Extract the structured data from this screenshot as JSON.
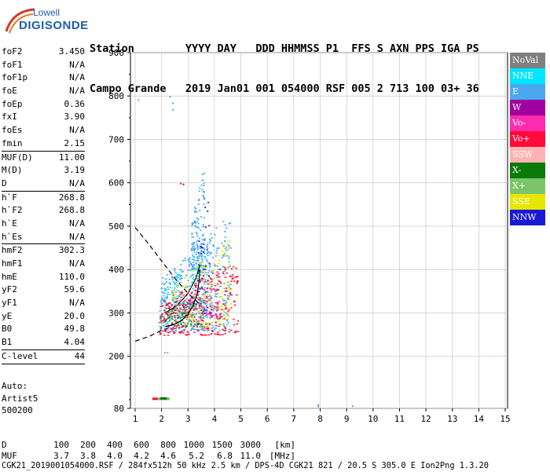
{
  "logo": {
    "line1": "Lowell",
    "line2": "DIGISONDE"
  },
  "header": {
    "line1": "Station        YYYY DAY   DDD HHMMSS P1  FFS S AXN PPS IGA PS",
    "line2": "Campo Grande   2019 Jan01 001 054000 RSF 005 2 713 100 03+ 36"
  },
  "params": [
    {
      "group": [
        {
          "k": "foF2",
          "v": "3.450"
        },
        {
          "k": "foF1",
          "v": "N/A"
        },
        {
          "k": "foF1p",
          "v": "N/A"
        },
        {
          "k": "foE",
          "v": "N/A"
        },
        {
          "k": "foEp",
          "v": "0.36"
        },
        {
          "k": "fxI",
          "v": "3.90"
        },
        {
          "k": "foEs",
          "v": "N/A"
        },
        {
          "k": "fmin",
          "v": "2.15"
        }
      ]
    },
    {
      "group": [
        {
          "k": "MUF(D)",
          "v": "11.00"
        },
        {
          "k": "M(D)",
          "v": "3.19"
        },
        {
          "k": "D",
          "v": "N/A"
        }
      ]
    },
    {
      "group": [
        {
          "k": "h`F",
          "v": "268.8"
        },
        {
          "k": "h`F2",
          "v": "268.8"
        },
        {
          "k": "h`E",
          "v": "N/A"
        },
        {
          "k": "h`Es",
          "v": "N/A"
        }
      ]
    },
    {
      "group": [
        {
          "k": "hmF2",
          "v": "302.3"
        },
        {
          "k": "hmF1",
          "v": "N/A"
        },
        {
          "k": "hmE",
          "v": "110.0"
        },
        {
          "k": "yF2",
          "v": "59.6"
        },
        {
          "k": "yF1",
          "v": "N/A"
        },
        {
          "k": "yE",
          "v": "20.0"
        },
        {
          "k": "B0",
          "v": "49.8"
        },
        {
          "k": "B1",
          "v": "4.04"
        }
      ]
    },
    {
      "group": [
        {
          "k": "C-level",
          "v": "44"
        }
      ]
    }
  ],
  "auto": [
    "Auto:",
    "Artist5",
    "500200"
  ],
  "legend": [
    {
      "label": "NoVal",
      "color": "#7f7f7f"
    },
    {
      "label": "NNE",
      "color": "#00e5ff"
    },
    {
      "label": "E",
      "color": "#4aa8f0"
    },
    {
      "label": "W",
      "color": "#a0009e"
    },
    {
      "label": "Vo-",
      "color": "#ff2bb0"
    },
    {
      "label": "Vo+",
      "color": "#ff0a3a"
    },
    {
      "label": "SSW",
      "color": "#ffb3b3"
    },
    {
      "label": "X-",
      "color": "#0a7a0a"
    },
    {
      "label": "X+",
      "color": "#7cc46a"
    },
    {
      "label": "SSE",
      "color": "#e6e600"
    },
    {
      "label": "NNW",
      "color": "#1a1ad4"
    }
  ],
  "footer": {
    "d_label": "D",
    "d_values": [
      "100",
      "200",
      "400",
      "600",
      "800",
      "1000",
      "1500",
      "3000",
      "[km]"
    ],
    "muf_label": "MUF",
    "muf_values": [
      "3.7",
      "3.8",
      "4.0",
      "4.2",
      "4.6",
      "5.2",
      "6.8",
      "11.0",
      "[MHz]"
    ],
    "info": "CGK21_2019001054000.RSF / 284fx512h 50 kHz 2.5 km / DPS-4D CGK21 821 / 20.5 S 305.0 E Ion2Png 1.3.20"
  },
  "chart_data": {
    "type": "scatter",
    "title": "",
    "xlabel": "",
    "ylabel": "",
    "xlim": [
      1,
      15
    ],
    "ylim": [
      80,
      900
    ],
    "x_ticks": [
      1,
      2,
      3,
      4,
      5,
      6,
      7,
      8,
      9,
      10,
      11,
      12,
      13,
      14,
      15
    ],
    "y_ticks": [
      80,
      200,
      300,
      400,
      500,
      600,
      700,
      800,
      900
    ],
    "grid": true,
    "legend_position": "right",
    "trace_clusters": [
      {
        "name": "E",
        "color": "#4aa8f0",
        "x_range": [
          1.9,
          4.6
        ],
        "y_range": [
          260,
          520
        ],
        "count": 520
      },
      {
        "name": "E",
        "color": "#4aa8f0",
        "x_range": [
          3.1,
          3.6
        ],
        "y_range": [
          400,
          640
        ],
        "count": 140
      },
      {
        "name": "NNE",
        "color": "#00e5ff",
        "x_range": [
          1.9,
          3.7
        ],
        "y_range": [
          270,
          470
        ],
        "count": 120
      },
      {
        "name": "Vo+",
        "color": "#ff0a3a",
        "x_range": [
          1.9,
          4.9
        ],
        "y_range": [
          250,
          420
        ],
        "count": 320
      },
      {
        "name": "Vo-",
        "color": "#ff2bb0",
        "x_range": [
          2.6,
          4.2
        ],
        "y_range": [
          290,
          390
        ],
        "count": 50
      },
      {
        "name": "SSE",
        "color": "#e6e600",
        "x_range": [
          2.3,
          4.6
        ],
        "y_range": [
          270,
          470
        ],
        "count": 160
      },
      {
        "name": "X+",
        "color": "#7cc46a",
        "x_range": [
          2.0,
          3.6
        ],
        "y_range": [
          265,
          350
        ],
        "count": 60
      },
      {
        "name": "X-",
        "color": "#0a7a0a",
        "x_range": [
          2.0,
          3.4
        ],
        "y_range": [
          270,
          340
        ],
        "count": 40
      },
      {
        "name": "W",
        "color": "#a0009e",
        "x_range": [
          2.4,
          3.9
        ],
        "y_range": [
          300,
          380
        ],
        "count": 30
      },
      {
        "name": "NNW",
        "color": "#1a1ad4",
        "x_range": [
          3.3,
          3.8
        ],
        "y_range": [
          300,
          600
        ],
        "count": 40
      },
      {
        "name": "SSW",
        "color": "#ffb3b3",
        "x_range": [
          2.5,
          3.9
        ],
        "y_range": [
          300,
          360
        ],
        "count": 20
      }
    ],
    "strips": [
      {
        "name": "Vo+",
        "color": "#ff0a3a",
        "x": [
          1.65,
          2.3
        ],
        "y": 102
      },
      {
        "name": "X+",
        "color": "#7cc46a",
        "x": [
          1.85,
          2.3
        ],
        "y": 102
      },
      {
        "name": "X-",
        "color": "#0a7a0a",
        "x": [
          1.95,
          2.2
        ],
        "y": 103
      }
    ],
    "isolated_points": [
      {
        "x": 2.1,
        "y": 210,
        "color": "#7cc46a"
      },
      {
        "x": 2.2,
        "y": 210,
        "color": "#7cc46a"
      },
      {
        "x": 1.1,
        "y": 792,
        "color": "#4aa8f0"
      },
      {
        "x": 2.4,
        "y": 785,
        "color": "#4aa8f0"
      },
      {
        "x": 2.4,
        "y": 770,
        "color": "#4aa8f0"
      },
      {
        "x": 2.3,
        "y": 800,
        "color": "#4aa8f0"
      },
      {
        "x": 7.9,
        "y": 90,
        "color": "#4aa8f0"
      },
      {
        "x": 7.9,
        "y": 86,
        "color": "#4aa8f0"
      },
      {
        "x": 9.2,
        "y": 87,
        "color": "#4aa8f0"
      },
      {
        "x": 2.7,
        "y": 600,
        "color": "#ff0a3a"
      },
      {
        "x": 2.8,
        "y": 598,
        "color": "#a0009e"
      }
    ],
    "profile_curve": {
      "description": "virtual height trace fit (solid)",
      "points": [
        [
          2.15,
          268
        ],
        [
          2.5,
          274
        ],
        [
          2.8,
          285
        ],
        [
          3.0,
          297
        ],
        [
          3.2,
          318
        ],
        [
          3.35,
          345
        ],
        [
          3.42,
          375
        ],
        [
          3.45,
          400
        ]
      ]
    },
    "dashed_profile_low": {
      "points": [
        [
          1.0,
          235
        ],
        [
          1.5,
          245
        ],
        [
          2.0,
          260
        ],
        [
          2.3,
          266
        ]
      ]
    },
    "dashed_profile_high": {
      "points": [
        [
          1.0,
          497
        ],
        [
          1.5,
          460
        ],
        [
          2.0,
          420
        ],
        [
          2.5,
          380
        ],
        [
          3.0,
          345
        ],
        [
          3.45,
          320
        ]
      ]
    },
    "mid_curve": {
      "points": [
        [
          2.15,
          300
        ],
        [
          2.6,
          318
        ],
        [
          3.0,
          345
        ],
        [
          3.3,
          380
        ],
        [
          3.45,
          410
        ]
      ]
    }
  }
}
